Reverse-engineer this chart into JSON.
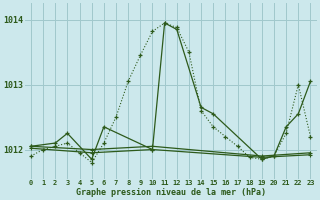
{
  "title": "Graphe pression niveau de la mer (hPa)",
  "bg_color": "#cce8ec",
  "grid_color": "#a0c8cc",
  "line_color": "#2d5a1b",
  "xlim": [
    -0.5,
    23.5
  ],
  "ylim": [
    1011.55,
    1014.25
  ],
  "yticks": [
    1012,
    1013,
    1014
  ],
  "ylabel_left_pad": 5,
  "dotted_x": [
    0,
    1,
    2,
    3,
    4,
    5,
    6,
    7,
    8,
    9,
    10,
    11,
    12,
    13,
    14,
    15,
    16,
    17,
    18,
    19,
    20,
    21,
    22,
    23
  ],
  "dotted_y": [
    1011.9,
    1012.0,
    1012.05,
    1012.1,
    1011.95,
    1011.8,
    1012.1,
    1012.5,
    1013.05,
    1013.45,
    1013.82,
    1013.95,
    1013.88,
    1013.5,
    1012.6,
    1012.35,
    1012.2,
    1012.05,
    1011.88,
    1011.85,
    1011.9,
    1012.25,
    1013.0,
    1012.2
  ],
  "solid_big_x": [
    0,
    2,
    3,
    5,
    6,
    10,
    11,
    12,
    14,
    15,
    19,
    20,
    21,
    22,
    23
  ],
  "solid_big_y": [
    1012.05,
    1012.1,
    1012.25,
    1011.85,
    1012.35,
    1012.0,
    1013.95,
    1013.85,
    1012.65,
    1012.55,
    1011.85,
    1011.9,
    1012.35,
    1012.55,
    1013.05
  ],
  "flat1_x": [
    0,
    5,
    10,
    19,
    23
  ],
  "flat1_y": [
    1012.02,
    1011.95,
    1012.0,
    1011.88,
    1011.92
  ],
  "flat2_x": [
    0,
    5,
    10,
    19,
    23
  ],
  "flat2_y": [
    1012.05,
    1012.0,
    1012.05,
    1011.9,
    1011.95
  ]
}
